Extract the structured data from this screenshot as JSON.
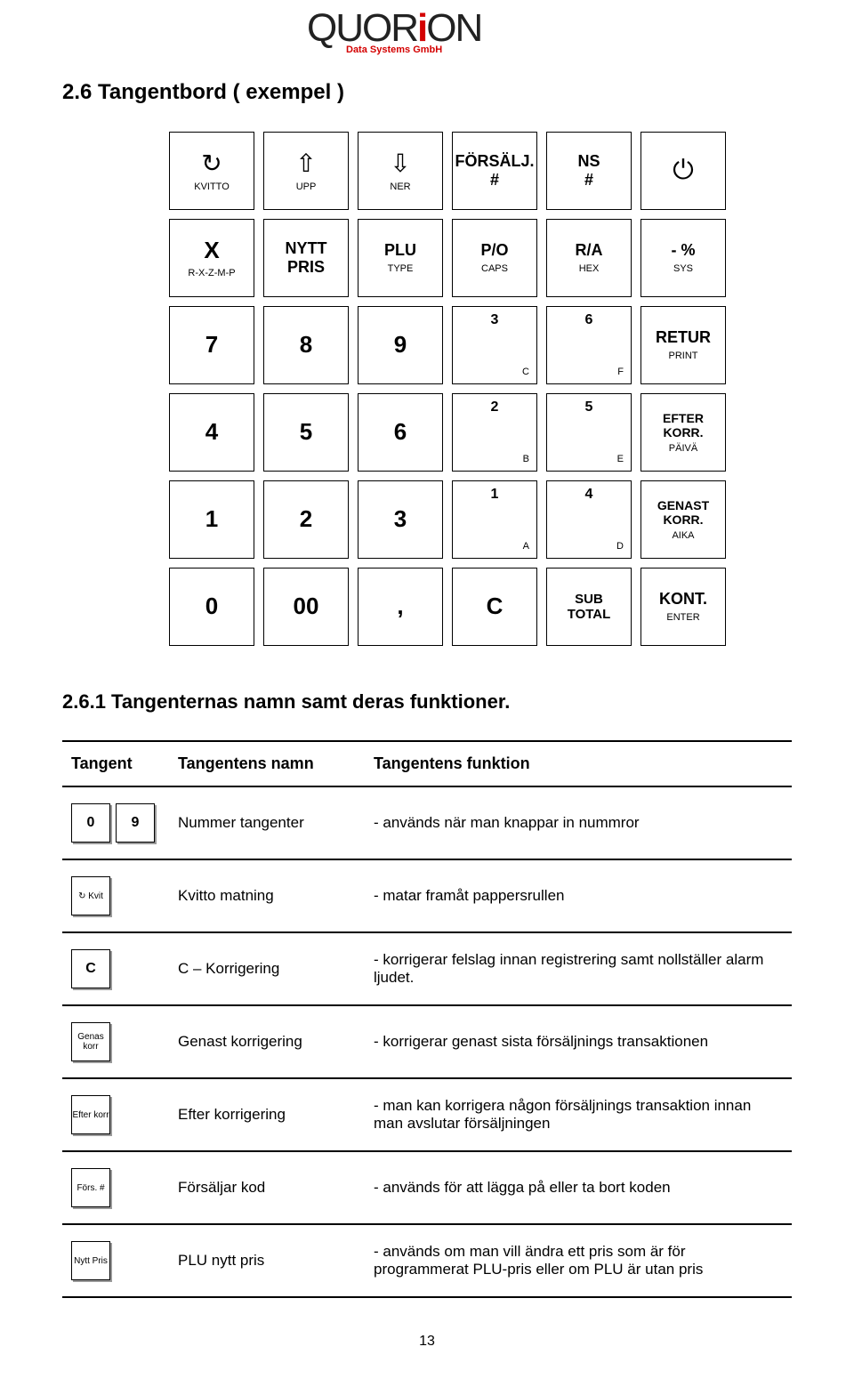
{
  "logo": {
    "text": "QUORiON",
    "sub": "Data Systems GmbH"
  },
  "section_title": "2.6 Tangentbord ( exempel )",
  "subsection_title": "2.6.1 Tangenternas namn samt deras funktioner.",
  "page_number": "13",
  "keypad": {
    "r1": {
      "kvitto": {
        "glyph": "↻",
        "label": "KVITTO"
      },
      "upp": {
        "glyph": "⇧",
        "label": "UPP"
      },
      "ner": {
        "glyph": "⇩",
        "label": "NER"
      },
      "forsalj": {
        "top": "FÖRSÄLJ.",
        "bot": "#"
      },
      "ns": {
        "top": "NS",
        "bot": "#"
      },
      "power": {
        "glyph": "⏻"
      }
    },
    "r2": {
      "x": {
        "big": "X",
        "sm": "R-X-Z-M-P"
      },
      "nytt": {
        "top": "NYTT",
        "bot": "PRIS"
      },
      "plu": {
        "top": "PLU",
        "sm": "TYPE"
      },
      "po": {
        "top": "P/O",
        "sm": "CAPS"
      },
      "ra": {
        "top": "R/A",
        "sm": "HEX"
      },
      "pct": {
        "top": "- %",
        "sm": "SYS"
      }
    },
    "r3": {
      "k7": "7",
      "k8": "8",
      "k9": "9",
      "c3": {
        "t": "3",
        "b": "C"
      },
      "c6": {
        "t": "6",
        "b": "F"
      },
      "retur": {
        "top": "RETUR",
        "sm": "PRINT"
      }
    },
    "r4": {
      "k4": "4",
      "k5": "5",
      "k6": "6",
      "c2": {
        "t": "2",
        "b": "B"
      },
      "c5": {
        "t": "5",
        "b": "E"
      },
      "efter": {
        "top": "EFTER",
        "mid": "KORR.",
        "sm": "PÄIVÄ"
      }
    },
    "r5": {
      "k1": "1",
      "k2": "2",
      "k3": "3",
      "c1": {
        "t": "1",
        "b": "A"
      },
      "c4": {
        "t": "4",
        "b": "D"
      },
      "genast": {
        "top": "GENAST",
        "mid": "KORR.",
        "sm": "AIKA"
      }
    },
    "r6": {
      "k0": "0",
      "k00": "00",
      "comma": ",",
      "C": "C",
      "sub": {
        "top": "SUB",
        "bot": "TOTAL"
      },
      "kont": {
        "top": "KONT.",
        "sm": "ENTER"
      }
    }
  },
  "table": {
    "headers": {
      "key": "Tangent",
      "name": "Tangentens namn",
      "func": "Tangentens funktion"
    },
    "rows": [
      {
        "keys": [
          "0",
          "9"
        ],
        "key_small": false,
        "name": "Nummer tangenter",
        "func": "- används när man knappar in nummror"
      },
      {
        "keys": [
          "↻ Kvit"
        ],
        "key_small": true,
        "name": "Kvitto matning",
        "func": "- matar framåt pappersrullen"
      },
      {
        "keys": [
          "C"
        ],
        "key_small": false,
        "name": "C – Korrigering",
        "func": "- korrigerar felslag innan registrering samt nollställer alarm ljudet."
      },
      {
        "keys": [
          "Genas korr"
        ],
        "key_small": true,
        "name": "Genast korrigering",
        "func": "- korrigerar genast sista försäljnings transaktionen"
      },
      {
        "keys": [
          "Efter korr"
        ],
        "key_small": true,
        "name": "Efter korrigering",
        "func": "- man kan korrigera någon försäljnings transaktion innan man avslutar försäljningen"
      },
      {
        "keys": [
          "Förs. #"
        ],
        "key_small": true,
        "name": "Försäljar kod",
        "func": "- används för att lägga på eller ta bort koden"
      },
      {
        "keys": [
          "Nytt Pris"
        ],
        "key_small": true,
        "name": "PLU nytt pris",
        "func": "- används om man vill ändra ett pris som är för programmerat PLU-pris eller om PLU är utan pris"
      }
    ]
  }
}
